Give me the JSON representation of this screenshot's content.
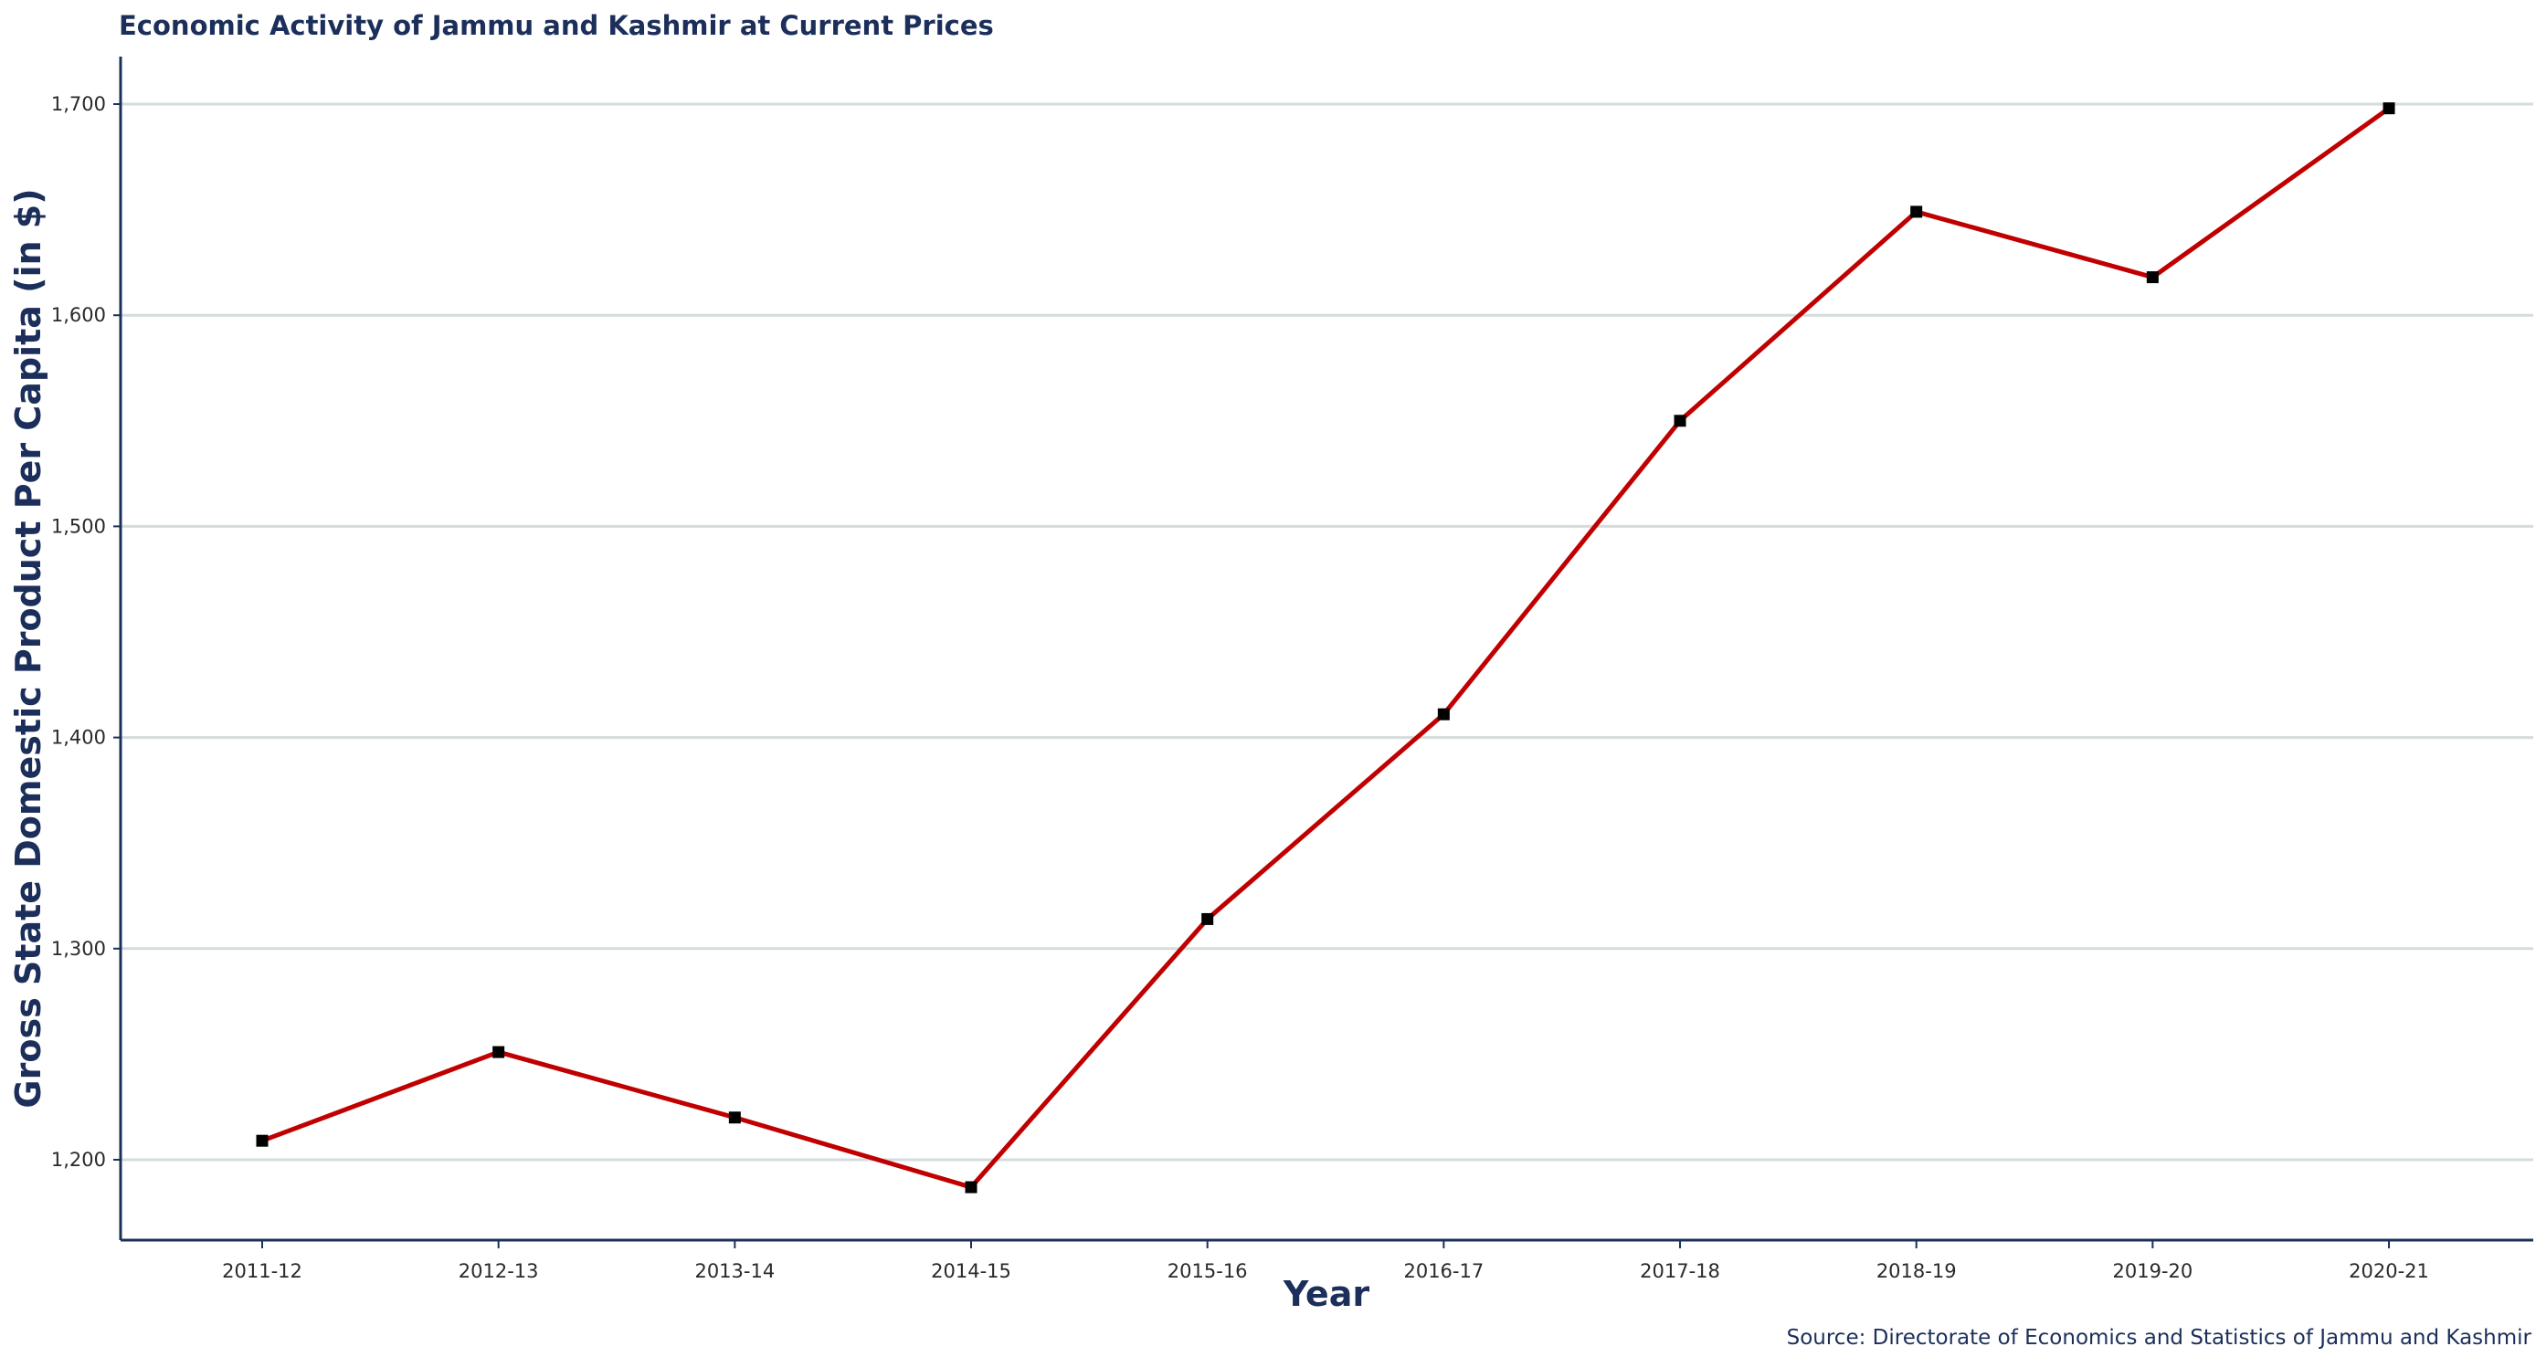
{
  "chart_data": {
    "type": "line",
    "title": "Economic Activity of Jammu and Kashmir at Current Prices",
    "xlabel": "Year",
    "ylabel": "Gross State Domestic Product Per Capita (in $)",
    "source": "Source: Directorate of Economics and Statistics of Jammu and Kashmir",
    "categories": [
      "2011-12",
      "2012-13",
      "2013-14",
      "2014-15",
      "2015-16",
      "2016-17",
      "2017-18",
      "2018-19",
      "2019-20",
      "2020-21"
    ],
    "values": [
      1209,
      1251,
      1220,
      1187,
      1314,
      1411,
      1550,
      1649,
      1618,
      1698
    ],
    "y_ticks": [
      1200,
      1300,
      1400,
      1500,
      1600,
      1700
    ],
    "y_tick_labels": [
      "1,200",
      "1,300",
      "1,400",
      "1,500",
      "1,600",
      "1,700"
    ],
    "ylim": [
      1162,
      1723
    ],
    "grid": "horizontal",
    "line_color": "#c00000",
    "marker_color": "#000000",
    "marker": "square",
    "text_color": "#1c2f5a"
  }
}
